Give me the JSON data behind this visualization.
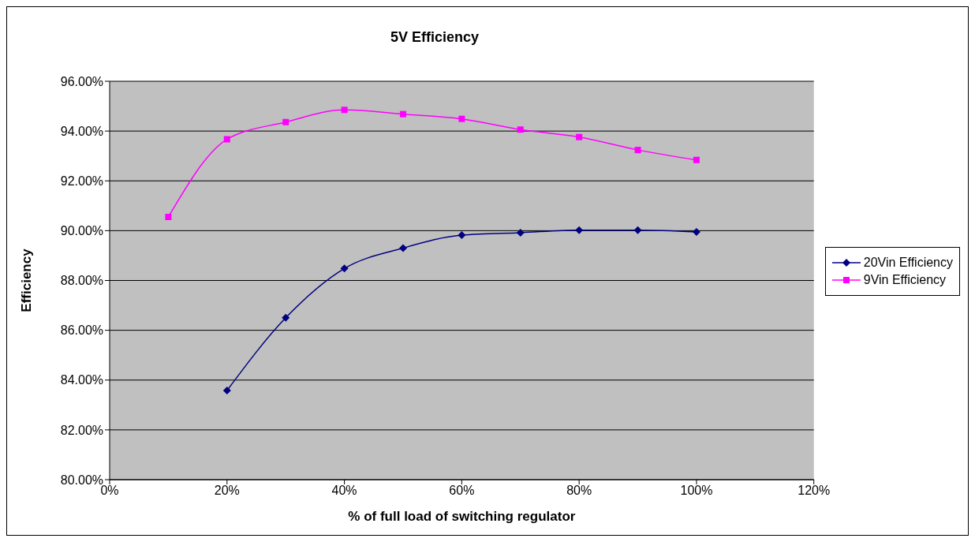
{
  "chart_data": {
    "type": "line",
    "title": "5V Efficiency",
    "xlabel": "% of full load of switching regulator",
    "ylabel": "Efficiency",
    "x": [
      10,
      20,
      30,
      40,
      50,
      60,
      70,
      80,
      90,
      100
    ],
    "series": [
      {
        "name": "20Vin Efficiency",
        "color": "#000080",
        "marker": "diamond",
        "values": [
          null,
          83.58,
          86.5,
          88.48,
          89.3,
          89.82,
          89.92,
          90.02,
          90.02,
          89.95
        ]
      },
      {
        "name": "9Vin Efficiency",
        "color": "#ff00ff",
        "marker": "square",
        "values": [
          90.55,
          93.67,
          94.36,
          94.85,
          94.68,
          94.49,
          94.06,
          93.76,
          93.24,
          92.84
        ]
      }
    ],
    "xlim": [
      0,
      120
    ],
    "xticks": [
      {
        "value": 0,
        "label": "0%"
      },
      {
        "value": 20,
        "label": "20%"
      },
      {
        "value": 40,
        "label": "40%"
      },
      {
        "value": 60,
        "label": "60%"
      },
      {
        "value": 80,
        "label": "80%"
      },
      {
        "value": 100,
        "label": "100%"
      },
      {
        "value": 120,
        "label": "120%"
      }
    ],
    "ylim": [
      80,
      96
    ],
    "yticks": [
      {
        "value": 80,
        "label": "80.00%"
      },
      {
        "value": 82,
        "label": "82.00%"
      },
      {
        "value": 84,
        "label": "84.00%"
      },
      {
        "value": 86,
        "label": "86.00%"
      },
      {
        "value": 88,
        "label": "88.00%"
      },
      {
        "value": 90,
        "label": "90.00%"
      },
      {
        "value": 92,
        "label": "92.00%"
      },
      {
        "value": 94,
        "label": "94.00%"
      },
      {
        "value": 96,
        "label": "96.00%"
      }
    ],
    "grid": "y",
    "legend": "right"
  }
}
